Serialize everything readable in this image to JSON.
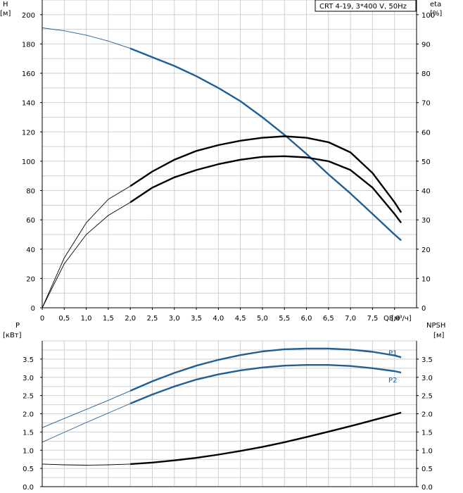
{
  "legend": {
    "text": "CRT 4-19, 3*400 V, 50Hz"
  },
  "colors": {
    "blue": "#1f5f94",
    "black": "#000000",
    "grid": "#cfcfcf"
  },
  "chart_data": [
    {
      "type": "line",
      "xlabel": "Q [м³/ч]",
      "x_ticks": [
        "0",
        "0,5",
        "1,0",
        "1,5",
        "2,0",
        "2,5",
        "3,0",
        "3,5",
        "4,0",
        "4,5",
        "5,0",
        "5,5",
        "6,0",
        "6,5",
        "7,0",
        "7,5",
        "8,0"
      ],
      "xlim": [
        0,
        8.5
      ],
      "ylabel_left": [
        "H",
        "[м]"
      ],
      "ylabel_right": [
        "eta",
        "[%]"
      ],
      "ylim_left": [
        0,
        210
      ],
      "ylim_right": [
        0,
        105
      ],
      "y_ticks_left": [
        "0",
        "20",
        "40",
        "60",
        "80",
        "100",
        "120",
        "140",
        "160",
        "180",
        "200"
      ],
      "y_ticks_right": [
        "0",
        "10",
        "20",
        "30",
        "40",
        "50",
        "60",
        "70",
        "80",
        "90",
        "100"
      ],
      "grid": true,
      "series": [
        {
          "axis": "left",
          "color": "#1f5f94",
          "x": [
            0,
            0.5,
            1.0,
            1.5,
            2.0,
            2.5,
            3.0,
            3.5,
            4.0,
            4.5,
            5.0,
            5.5,
            6.0,
            6.5,
            7.0,
            7.5,
            8.0,
            8.15
          ],
          "y": [
            191,
            189,
            186,
            182,
            177,
            171,
            165,
            158,
            150,
            141,
            130,
            118,
            105,
            91,
            78,
            64,
            50,
            46
          ]
        },
        {
          "axis": "right",
          "color": "#000000",
          "x": [
            0,
            0.5,
            1.0,
            1.5,
            2.0,
            2.5,
            3.0,
            3.5,
            4.0,
            4.5,
            5.0,
            5.5,
            6.0,
            6.5,
            7.0,
            7.5,
            8.0,
            8.15
          ],
          "y": [
            0,
            17,
            29,
            37,
            41.5,
            46.5,
            50.5,
            53.5,
            55.5,
            57,
            58,
            58.5,
            58,
            56.5,
            53,
            46,
            36,
            32.5
          ]
        },
        {
          "axis": "right",
          "color": "#000000",
          "x": [
            0,
            0.5,
            1.0,
            1.5,
            2.0,
            2.5,
            3.0,
            3.5,
            4.0,
            4.5,
            5.0,
            5.5,
            6.0,
            6.5,
            7.0,
            7.5,
            8.0,
            8.15
          ],
          "y": [
            0,
            15,
            25,
            31.5,
            36,
            41,
            44.5,
            47,
            49,
            50.5,
            51.5,
            51.7,
            51.3,
            50,
            47,
            41,
            32,
            29
          ]
        }
      ]
    },
    {
      "type": "line",
      "ylabel_left": [
        "P",
        "[кВт]"
      ],
      "ylabel_right": [
        "NPSH",
        "[м]"
      ],
      "xlim": [
        0,
        8.5
      ],
      "ylim_left": [
        0,
        4.0
      ],
      "ylim_right": [
        0,
        4.0
      ],
      "y_ticks_left": [
        "0.0",
        "0.5",
        "1.0",
        "1.5",
        "2.0",
        "2.5",
        "3.0",
        "3.5"
      ],
      "y_ticks_right": [
        "0.0",
        "0.5",
        "1.0",
        "1.5",
        "2.0",
        "2.5",
        "3.0",
        "3.5"
      ],
      "grid": true,
      "series": [
        {
          "name": "P1",
          "axis": "left",
          "color": "#1f5f94",
          "x": [
            0,
            0.5,
            1.0,
            1.5,
            2.0,
            2.5,
            3.0,
            3.5,
            4.0,
            4.5,
            5.0,
            5.5,
            6.0,
            6.5,
            7.0,
            7.5,
            8.0,
            8.15
          ],
          "y": [
            1.62,
            1.87,
            2.12,
            2.37,
            2.63,
            2.89,
            3.12,
            3.32,
            3.48,
            3.61,
            3.71,
            3.77,
            3.79,
            3.79,
            3.76,
            3.7,
            3.6,
            3.55
          ]
        },
        {
          "name": "P2",
          "axis": "left",
          "color": "#1f5f94",
          "x": [
            0,
            0.5,
            1.0,
            1.5,
            2.0,
            2.5,
            3.0,
            3.5,
            4.0,
            4.5,
            5.0,
            5.5,
            6.0,
            6.5,
            7.0,
            7.5,
            8.0,
            8.15
          ],
          "y": [
            1.22,
            1.49,
            1.76,
            2.02,
            2.28,
            2.53,
            2.75,
            2.94,
            3.08,
            3.19,
            3.27,
            3.32,
            3.34,
            3.34,
            3.31,
            3.25,
            3.17,
            3.13
          ]
        },
        {
          "axis": "right",
          "color": "#000000",
          "x": [
            0,
            0.5,
            1.0,
            1.5,
            2.0,
            2.5,
            3.0,
            3.5,
            4.0,
            4.5,
            5.0,
            5.5,
            6.0,
            6.5,
            7.0,
            7.5,
            8.0,
            8.15
          ],
          "y": [
            0.62,
            0.6,
            0.59,
            0.6,
            0.62,
            0.66,
            0.72,
            0.79,
            0.88,
            0.98,
            1.09,
            1.22,
            1.36,
            1.51,
            1.66,
            1.82,
            1.98,
            2.03
          ]
        }
      ]
    }
  ]
}
